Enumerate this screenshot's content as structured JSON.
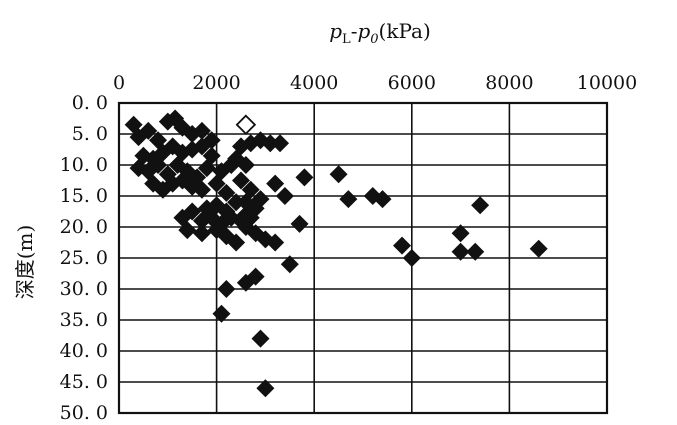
{
  "chart_data": {
    "type": "scatter",
    "xlabel_math": {
      "a": "p",
      "a_sub": "L",
      "dash": "-",
      "b": "p",
      "b_sub": "0",
      "unit": "(kPa)"
    },
    "ylabel": "深度(m)",
    "x_axis_position": "top",
    "y_axis_inverted": true,
    "xlim": [
      0,
      10000
    ],
    "ylim": [
      0,
      50
    ],
    "x_ticks": [
      0,
      2000,
      4000,
      6000,
      8000,
      10000
    ],
    "x_tick_labels": [
      "0",
      "2000",
      "4000",
      "6000",
      "8000",
      "10000"
    ],
    "y_ticks": [
      0,
      5,
      10,
      15,
      20,
      25,
      30,
      35,
      40,
      45,
      50
    ],
    "y_tick_labels": [
      "0. 0",
      "5. 0",
      "10. 0",
      "15. 0",
      "20. 0",
      "25. 0",
      "30. 0",
      "35. 0",
      "40. 0",
      "45. 0",
      "50. 0"
    ],
    "grid": true,
    "marker": "diamond",
    "series": [
      {
        "points": [
          [
            300,
            3.5
          ],
          [
            400,
            5.5
          ],
          [
            600,
            4.5
          ],
          [
            800,
            6
          ],
          [
            1000,
            3
          ],
          [
            1150,
            2.5
          ],
          [
            1300,
            4
          ],
          [
            1500,
            5
          ],
          [
            1700,
            4.5
          ],
          [
            1900,
            6
          ],
          [
            500,
            8.5
          ],
          [
            700,
            9
          ],
          [
            900,
            8
          ],
          [
            1100,
            7
          ],
          [
            1300,
            8
          ],
          [
            1500,
            7.5
          ],
          [
            1700,
            7
          ],
          [
            1900,
            8.5
          ],
          [
            400,
            10.5
          ],
          [
            600,
            11
          ],
          [
            800,
            10
          ],
          [
            1000,
            11.5
          ],
          [
            1200,
            10
          ],
          [
            1400,
            11
          ],
          [
            1600,
            12
          ],
          [
            1800,
            10.5
          ],
          [
            2100,
            11
          ],
          [
            2300,
            10
          ],
          [
            700,
            13
          ],
          [
            900,
            14
          ],
          [
            1100,
            13
          ],
          [
            1300,
            12.5
          ],
          [
            1500,
            13.5
          ],
          [
            1700,
            14
          ],
          [
            2000,
            13
          ],
          [
            2200,
            14.5
          ],
          [
            2400,
            9
          ],
          [
            2500,
            7
          ],
          [
            2600,
            10
          ],
          [
            2700,
            6.5
          ],
          [
            2900,
            6
          ],
          [
            3100,
            6.5
          ],
          [
            3300,
            6.5
          ],
          [
            2500,
            12.5
          ],
          [
            2700,
            14
          ],
          [
            2600,
            16
          ],
          [
            2900,
            15.5
          ],
          [
            3200,
            13
          ],
          [
            3400,
            15
          ],
          [
            1800,
            17
          ],
          [
            2000,
            16.5
          ],
          [
            2200,
            17.5
          ],
          [
            2400,
            16
          ],
          [
            2600,
            18
          ],
          [
            2800,
            17
          ],
          [
            1300,
            18.5
          ],
          [
            1500,
            17.5
          ],
          [
            1700,
            19
          ],
          [
            1900,
            18.5
          ],
          [
            2100,
            19.5
          ],
          [
            2300,
            18.5
          ],
          [
            2500,
            19
          ],
          [
            2700,
            18.5
          ],
          [
            1400,
            20.5
          ],
          [
            1700,
            21
          ],
          [
            2000,
            20.5
          ],
          [
            2200,
            21.5
          ],
          [
            2400,
            22.5
          ],
          [
            2600,
            20
          ],
          [
            2800,
            21
          ],
          [
            3000,
            22
          ],
          [
            3200,
            22.5
          ],
          [
            3800,
            12
          ],
          [
            3700,
            19.5
          ],
          [
            3500,
            26
          ],
          [
            2200,
            30
          ],
          [
            2100,
            34
          ],
          [
            2600,
            29
          ],
          [
            2800,
            28
          ],
          [
            2900,
            38
          ],
          [
            3000,
            46
          ],
          [
            4500,
            11.5
          ],
          [
            4700,
            15.5
          ],
          [
            5200,
            15
          ],
          [
            5400,
            15.5
          ],
          [
            5800,
            23
          ],
          [
            6000,
            25
          ],
          [
            7000,
            21
          ],
          [
            7000,
            24
          ],
          [
            7300,
            24
          ],
          [
            7400,
            16.5
          ],
          [
            8600,
            23.5
          ]
        ]
      },
      {
        "style": "hollow",
        "points": [
          [
            2600,
            3.5
          ]
        ]
      }
    ]
  }
}
